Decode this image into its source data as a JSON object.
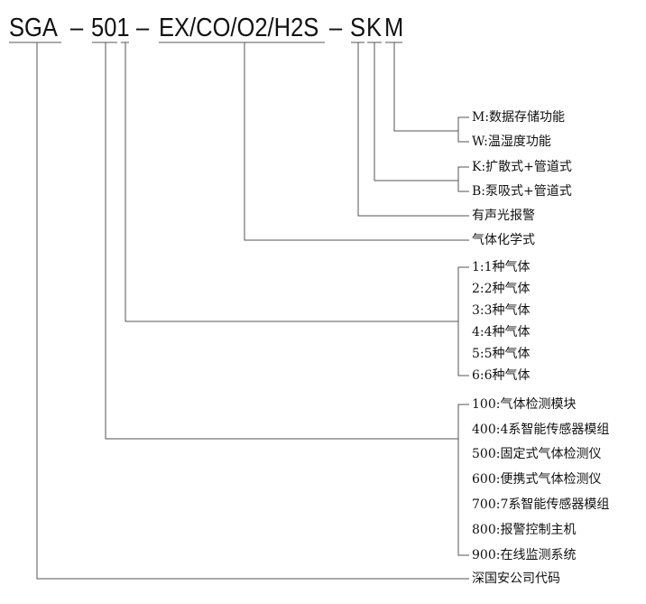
{
  "code": {
    "parts": [
      "SGA",
      "–",
      "501",
      "–",
      "EX/CO/O2/H2S",
      "–",
      "S",
      "K",
      "M"
    ]
  },
  "options": {
    "m": "M:数据存储功能",
    "w": "W:温湿度功能",
    "k": "K:扩散式+管道式",
    "b": "B:泵吸式+管道式",
    "alarm": "有声光报警",
    "gas_formula": "气体化学式",
    "gas_count": [
      "1:1种气体",
      "2:2种气体",
      "3:3种气体",
      "4:4种气体",
      "5:5种气体",
      "6:6种气体"
    ],
    "series": [
      "100:气体检测模块",
      "400:4系智能传感器模组",
      "500:固定式气体检测仪",
      "600:便携式气体检测仪",
      "700:7系智能传感器模组",
      "800:报警控制主机",
      "900:在线监测系统"
    ],
    "company": "深国安公司代码"
  }
}
